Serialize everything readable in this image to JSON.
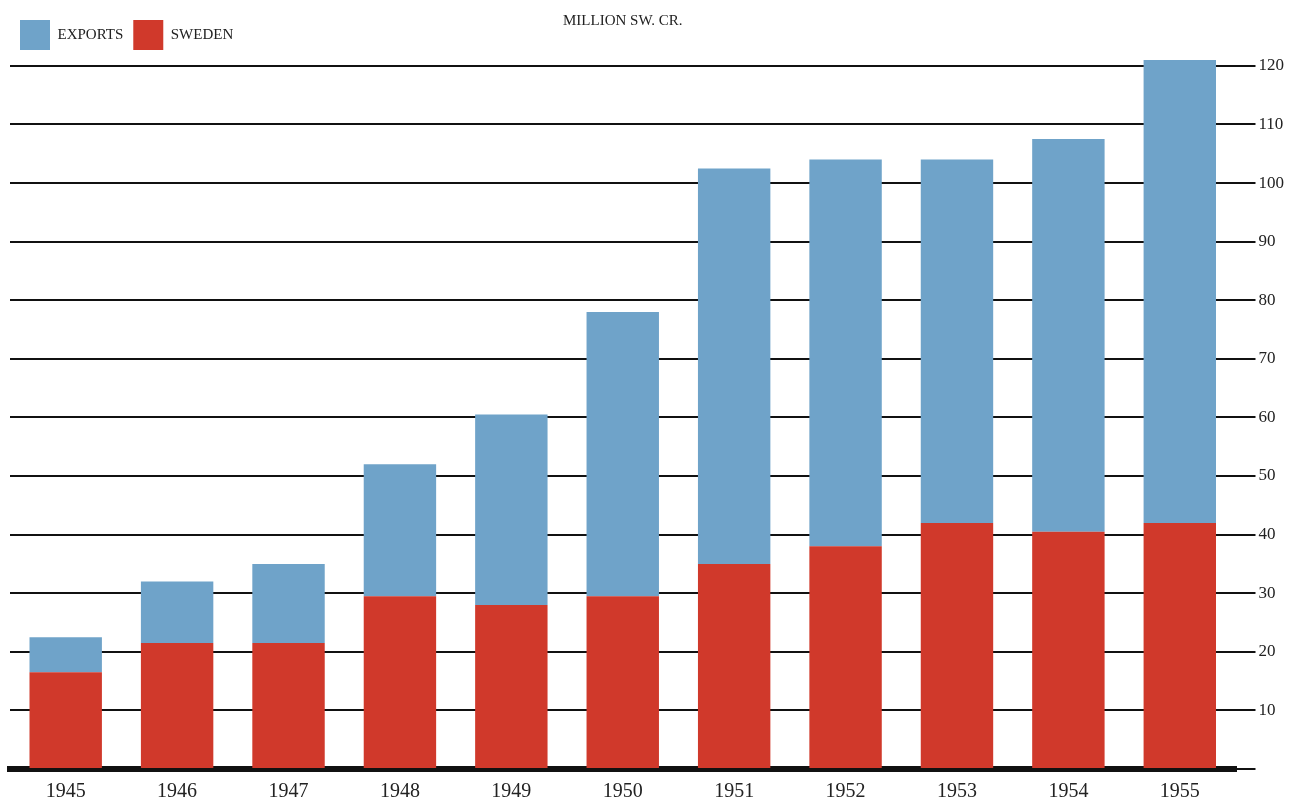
{
  "chart_data": {
    "type": "bar",
    "stacked": true,
    "ylabel": "MILLION SW. CR.",
    "categories": [
      "1945",
      "1946",
      "1947",
      "1948",
      "1949",
      "1950",
      "1951",
      "1952",
      "1953",
      "1954",
      "1955"
    ],
    "series": [
      {
        "name": "SWEDEN",
        "color": "#d0392b",
        "values": [
          16.5,
          21.5,
          21.5,
          29.5,
          28,
          29.5,
          35,
          38,
          42,
          40.5,
          42
        ]
      },
      {
        "name": "EXPORTS",
        "color": "#6fa3c9",
        "values": [
          6,
          10.5,
          13.5,
          22.5,
          32.5,
          48.5,
          67.5,
          66,
          62,
          67,
          79
        ]
      }
    ],
    "ylim": [
      0,
      121
    ],
    "yticks": [
      {
        "value": 0,
        "label": null
      },
      10,
      20,
      30,
      40,
      50,
      60,
      70,
      80,
      90,
      100,
      110,
      120
    ],
    "grid": "y",
    "legend": "top left"
  }
}
